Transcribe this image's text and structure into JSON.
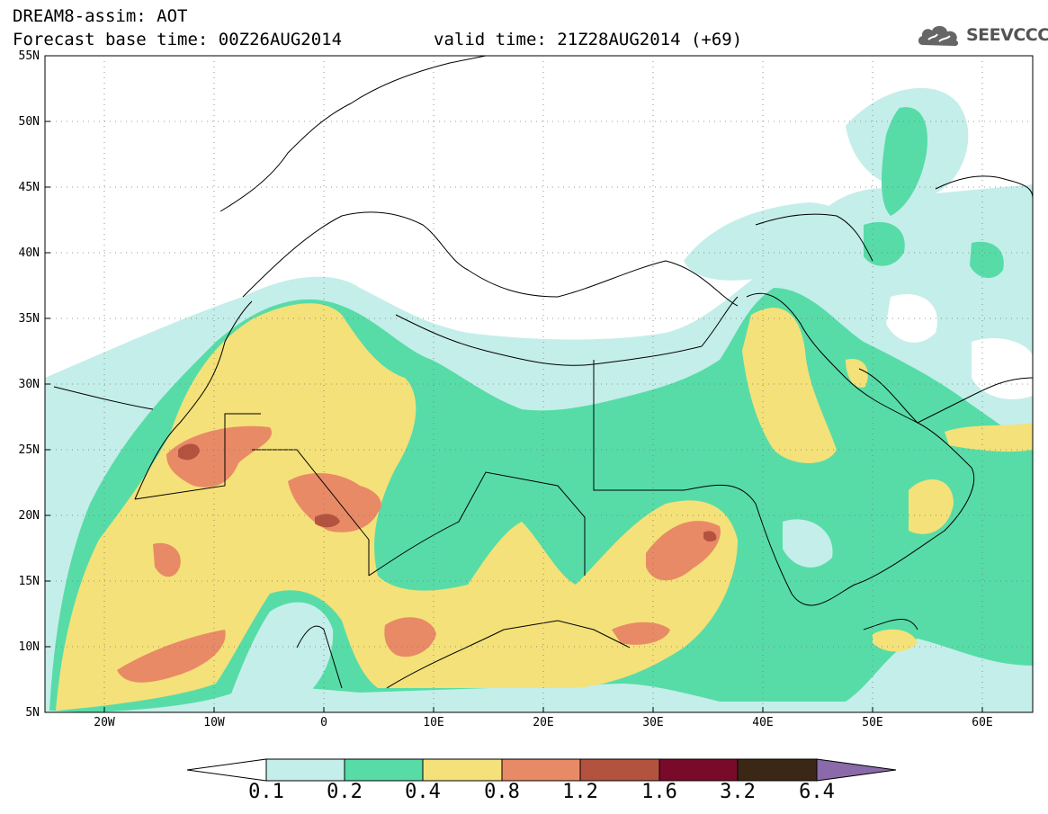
{
  "header": {
    "line1": "DREAM8-assim: AOT",
    "line2": "Forecast base time: 00Z26AUG2014",
    "valid": "valid time: 21Z28AUG2014 (+69)",
    "logo_text": "SEEVCCC"
  },
  "axes": {
    "lat_labels": [
      "55N",
      "50N",
      "45N",
      "40N",
      "35N",
      "30N",
      "25N",
      "20N",
      "15N",
      "10N",
      "5N"
    ],
    "lon_labels": [
      "20W",
      "10W",
      "0",
      "10E",
      "20E",
      "30E",
      "40E",
      "50E",
      "60E"
    ]
  },
  "colorbar": {
    "labels": [
      "0.1",
      "0.2",
      "0.4",
      "0.8",
      "1.2",
      "1.6",
      "3.2",
      "6.4"
    ],
    "colors": [
      "#ffffff",
      "#c4eeea",
      "#57dca8",
      "#f4e179",
      "#e98a66",
      "#b3533f",
      "#7a0a2a",
      "#3b2715",
      "#8a6aa8"
    ]
  },
  "map_colors": {
    "lev1": "#c4eeea",
    "lev2": "#57dca8",
    "lev3": "#f4e179",
    "lev4": "#e98a66",
    "lev5": "#b3533f"
  }
}
